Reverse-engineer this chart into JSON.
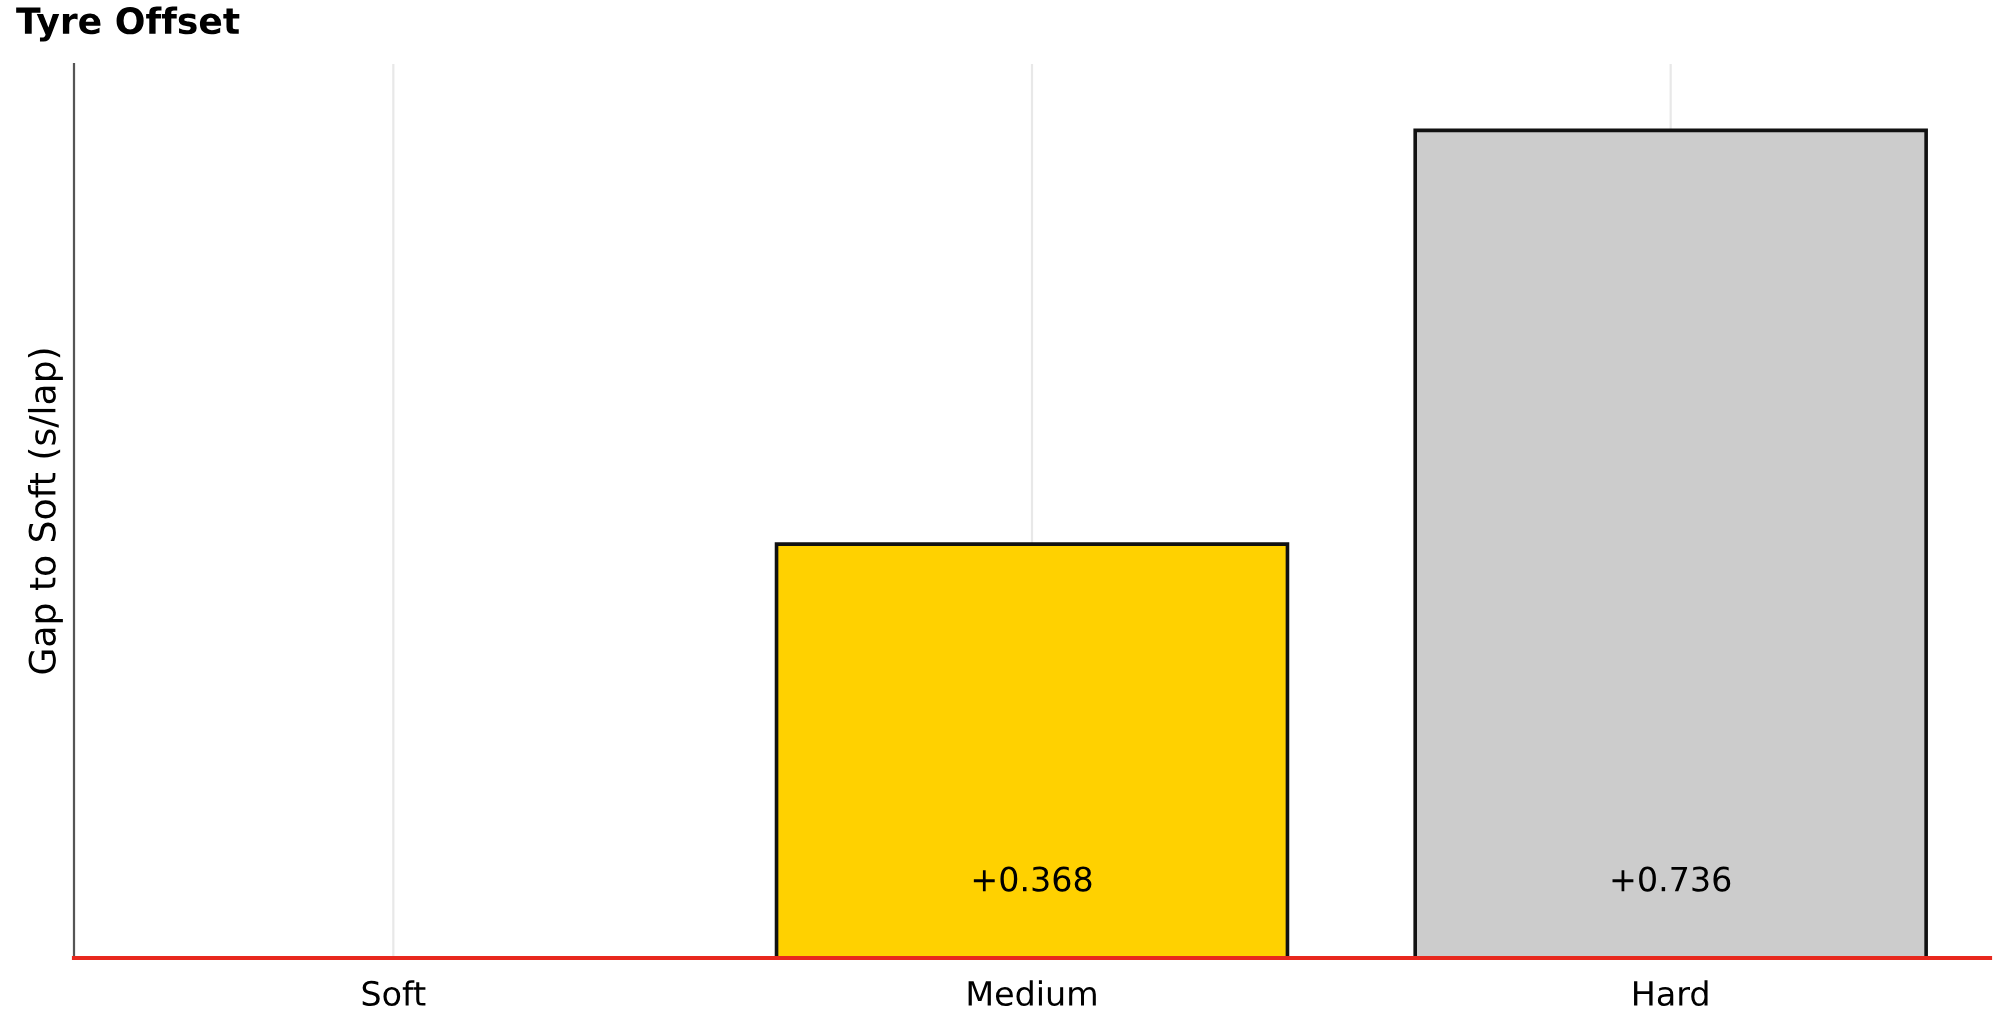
{
  "chart_data": {
    "type": "bar",
    "title": "Tyre Offset",
    "ylabel": "Gap to Soft (s/lap)",
    "categories": [
      "Soft",
      "Medium",
      "Hard"
    ],
    "values": [
      null,
      0.368,
      0.736
    ],
    "colors": [
      null,
      "#ffd100",
      "#cccccc"
    ],
    "value_labels": [
      null,
      "+0.368",
      "+0.736"
    ],
    "ylim": [
      0,
      0.795
    ],
    "tick_labels": "x",
    "grid": "x",
    "legend": false
  }
}
